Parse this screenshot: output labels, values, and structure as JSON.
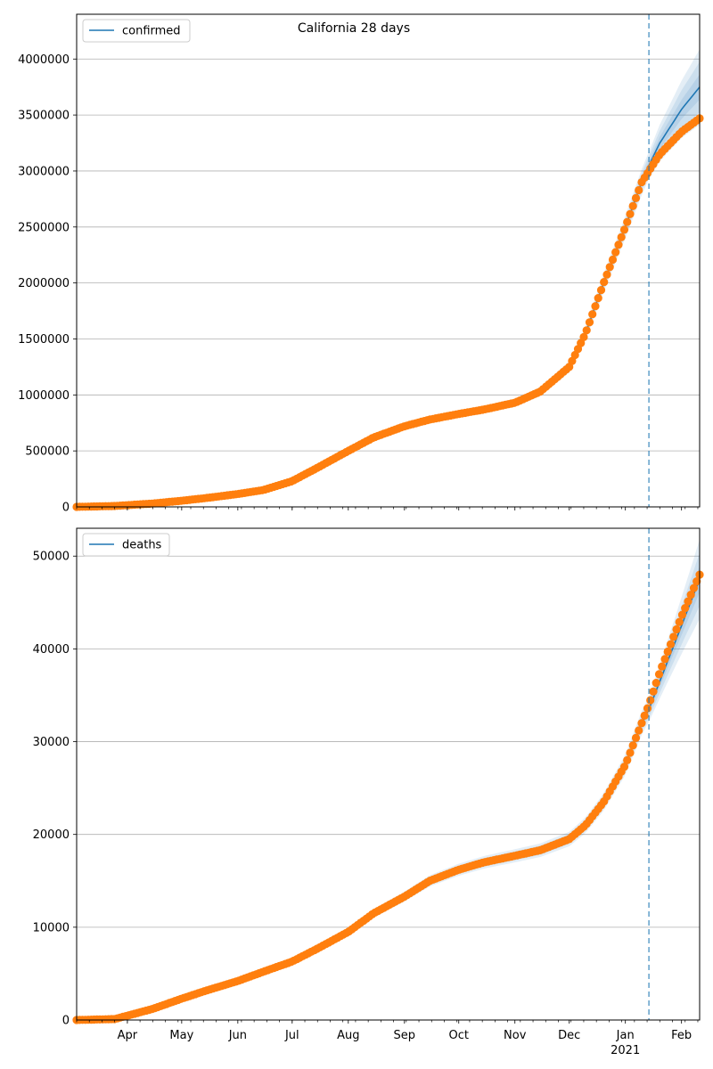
{
  "figure": {
    "title": "California 28 days"
  },
  "colors": {
    "model": "#1f77b4",
    "observed": "#ff7f0e",
    "band": "#1f77b4",
    "grid": "#b0b0b0",
    "forecast_line": "#1f77b4"
  },
  "x_axis": {
    "months": [
      {
        "label": "Apr",
        "date": "2020-04-01"
      },
      {
        "label": "May",
        "date": "2020-05-01"
      },
      {
        "label": "Jun",
        "date": "2020-06-01"
      },
      {
        "label": "Jul",
        "date": "2020-07-01"
      },
      {
        "label": "Aug",
        "date": "2020-08-01"
      },
      {
        "label": "Sep",
        "date": "2020-09-01"
      },
      {
        "label": "Oct",
        "date": "2020-10-01"
      },
      {
        "label": "Nov",
        "date": "2020-11-01"
      },
      {
        "label": "Dec",
        "date": "2020-12-01"
      },
      {
        "label": "Jan",
        "date": "2021-01-01"
      },
      {
        "label": "Feb",
        "date": "2021-02-01"
      }
    ],
    "year_label": "2021",
    "range": [
      "2020-03-04",
      "2021-02-11"
    ]
  },
  "chart_data": [
    {
      "type": "line",
      "legend": [
        "confirmed"
      ],
      "legend_position": "upper-left",
      "grid": "horizontal",
      "ylim": [
        0,
        4400000
      ],
      "yticks": [
        0,
        500000,
        1000000,
        1500000,
        2000000,
        2500000,
        3000000,
        3500000,
        4000000
      ],
      "forecast_start": "2021-01-14",
      "series": [
        {
          "name": "confirmed",
          "kind": "model",
          "x": [
            "2020-03-04",
            "2020-03-25",
            "2020-04-15",
            "2020-05-01",
            "2020-05-15",
            "2020-06-01",
            "2020-06-15",
            "2020-07-01",
            "2020-07-15",
            "2020-08-01",
            "2020-08-15",
            "2020-09-01",
            "2020-09-15",
            "2020-10-01",
            "2020-10-15",
            "2020-11-01",
            "2020-11-15",
            "2020-12-01",
            "2020-12-10",
            "2020-12-20",
            "2021-01-01",
            "2021-01-10",
            "2021-01-14",
            "2021-01-20",
            "2021-02-01",
            "2021-02-11"
          ],
          "y": [
            0,
            8000,
            30000,
            55000,
            80000,
            115000,
            150000,
            230000,
            350000,
            500000,
            620000,
            720000,
            780000,
            830000,
            870000,
            930000,
            1030000,
            1250000,
            1550000,
            2000000,
            2500000,
            2900000,
            3050000,
            3250000,
            3550000,
            3750000
          ]
        },
        {
          "name": "observed",
          "kind": "observed",
          "x": [
            "2020-03-04",
            "2020-03-25",
            "2020-04-15",
            "2020-05-01",
            "2020-05-15",
            "2020-06-01",
            "2020-06-15",
            "2020-07-01",
            "2020-07-15",
            "2020-08-01",
            "2020-08-15",
            "2020-09-01",
            "2020-09-15",
            "2020-10-01",
            "2020-10-15",
            "2020-11-01",
            "2020-11-15",
            "2020-12-01",
            "2020-12-10",
            "2020-12-20",
            "2021-01-01",
            "2021-01-10",
            "2021-01-14",
            "2021-01-20",
            "2021-02-01",
            "2021-02-11"
          ],
          "y": [
            0,
            8000,
            30000,
            55000,
            80000,
            115000,
            150000,
            230000,
            350000,
            500000,
            620000,
            720000,
            780000,
            830000,
            870000,
            930000,
            1030000,
            1250000,
            1550000,
            2000000,
            2500000,
            2900000,
            3000000,
            3150000,
            3350000,
            3470000
          ]
        }
      ]
    },
    {
      "type": "line",
      "legend": [
        "deaths"
      ],
      "legend_position": "upper-left",
      "grid": "horizontal",
      "ylim": [
        0,
        53000
      ],
      "yticks": [
        0,
        10000,
        20000,
        30000,
        40000,
        50000
      ],
      "forecast_start": "2021-01-14",
      "series": [
        {
          "name": "deaths",
          "kind": "model",
          "x": [
            "2020-03-04",
            "2020-03-25",
            "2020-04-15",
            "2020-05-01",
            "2020-05-15",
            "2020-06-01",
            "2020-06-15",
            "2020-07-01",
            "2020-07-15",
            "2020-08-01",
            "2020-08-15",
            "2020-09-01",
            "2020-09-15",
            "2020-10-01",
            "2020-10-15",
            "2020-11-01",
            "2020-11-15",
            "2020-12-01",
            "2020-12-10",
            "2020-12-20",
            "2021-01-01",
            "2021-01-10",
            "2021-01-14",
            "2021-01-20",
            "2021-02-01",
            "2021-02-11"
          ],
          "y": [
            0,
            100,
            1200,
            2300,
            3200,
            4200,
            5200,
            6300,
            7700,
            9500,
            11500,
            13300,
            15000,
            16200,
            17000,
            17700,
            18300,
            19500,
            21000,
            23500,
            27500,
            32000,
            33500,
            36500,
            42500,
            47500
          ]
        },
        {
          "name": "observed",
          "kind": "observed",
          "x": [
            "2020-03-04",
            "2020-03-25",
            "2020-04-15",
            "2020-05-01",
            "2020-05-15",
            "2020-06-01",
            "2020-06-15",
            "2020-07-01",
            "2020-07-15",
            "2020-08-01",
            "2020-08-15",
            "2020-09-01",
            "2020-09-15",
            "2020-10-01",
            "2020-10-15",
            "2020-11-01",
            "2020-11-15",
            "2020-12-01",
            "2020-12-10",
            "2020-12-20",
            "2021-01-01",
            "2021-01-10",
            "2021-01-14",
            "2021-01-20",
            "2021-02-01",
            "2021-02-11"
          ],
          "y": [
            0,
            100,
            1200,
            2300,
            3200,
            4200,
            5200,
            6300,
            7700,
            9500,
            11500,
            13300,
            15000,
            16200,
            17000,
            17700,
            18300,
            19500,
            21000,
            23500,
            27500,
            32000,
            34000,
            37500,
            43500,
            48000
          ]
        }
      ]
    }
  ]
}
